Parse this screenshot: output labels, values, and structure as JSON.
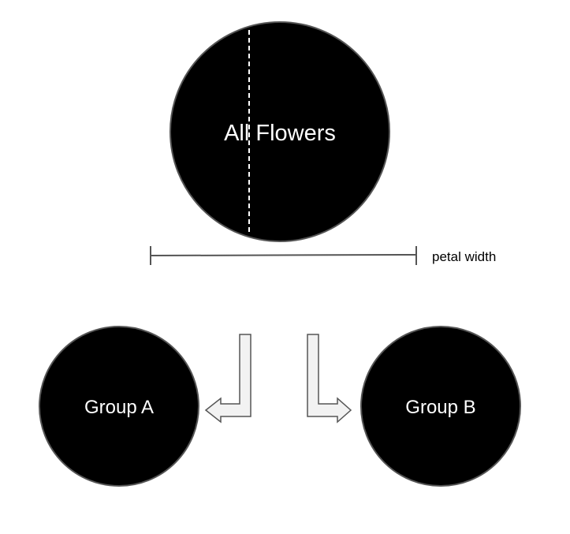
{
  "diagram": {
    "root": {
      "label": "All Flowers"
    },
    "groups": [
      {
        "label": "Group A"
      },
      {
        "label": "Group B"
      }
    ],
    "axis": {
      "label": "petal width"
    },
    "colors": {
      "node_fill": "#000000",
      "node_stroke": "#555555",
      "node_text": "#ffffff",
      "arrow_fill": "#f2f2f2",
      "arrow_stroke": "#555555",
      "split_line": "#ffffff"
    }
  }
}
